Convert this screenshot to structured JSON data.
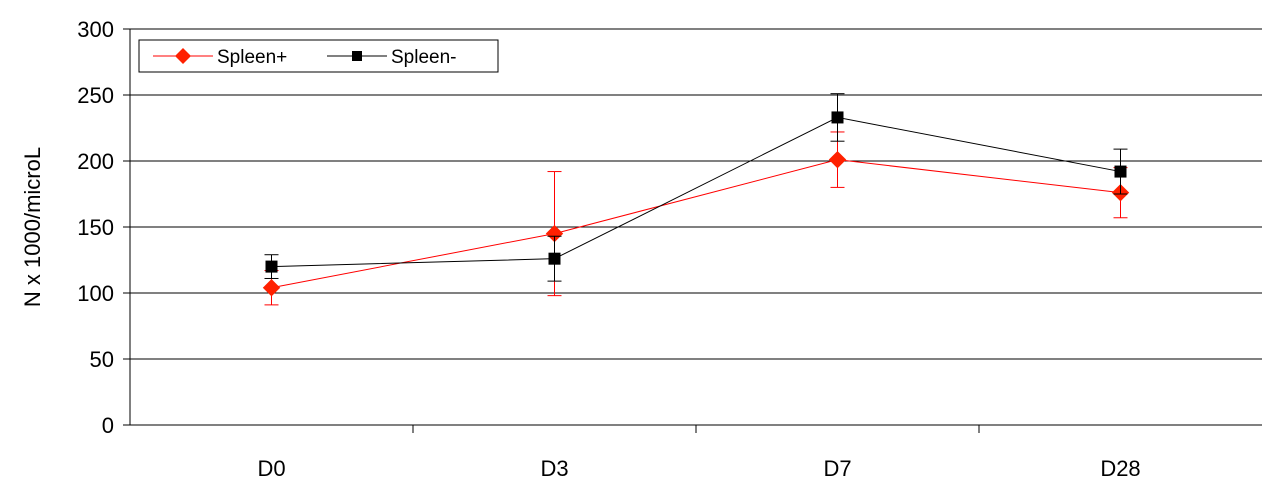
{
  "chart_data": {
    "type": "line",
    "title": "",
    "xlabel": "",
    "ylabel": "N x 1000/microL",
    "categories": [
      "D0",
      "D3",
      "D7",
      "D28"
    ],
    "ylim": [
      0,
      300
    ],
    "yticks": [
      0,
      50,
      100,
      150,
      200,
      250,
      300
    ],
    "grid": "horizontal",
    "legend_position": "top-left",
    "series": [
      {
        "name": "Spleen+",
        "color": "#ff0000",
        "marker_color": "#ff2000",
        "marker": "diamond",
        "values": [
          104,
          145,
          201,
          176
        ],
        "error": [
          13,
          47,
          21,
          19
        ]
      },
      {
        "name": "Spleen-",
        "color": "#000000",
        "marker_color": "#000000",
        "marker": "square",
        "values": [
          120,
          126,
          233,
          192
        ],
        "error": [
          9,
          17,
          18,
          17
        ]
      }
    ]
  }
}
